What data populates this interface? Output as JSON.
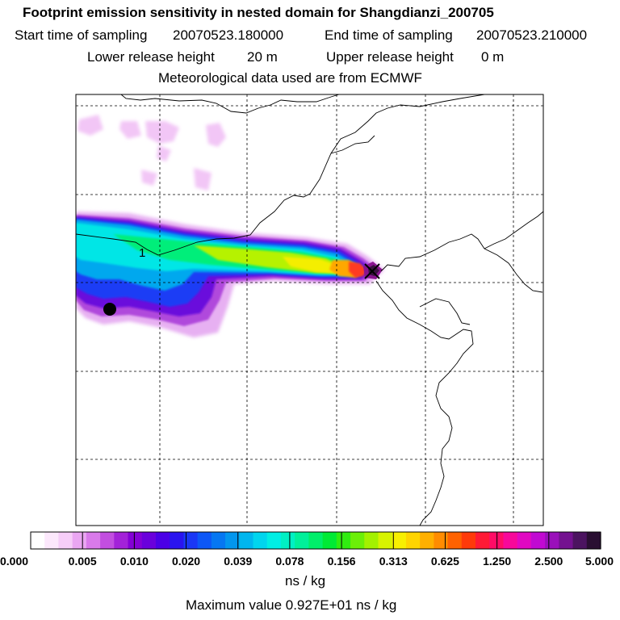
{
  "header": {
    "title": "Footprint emission sensitivity in nested domain for Shangdianzi_200705",
    "start_label": "Start time of sampling",
    "start_value": "20070523.180000",
    "end_label": "End time of sampling",
    "end_value": "20070523.210000",
    "lower_label": "Lower release height",
    "lower_value": "20 m",
    "upper_label": "Upper release height",
    "upper_value": "0 m",
    "met": "Meteorological data used are from ECMWF"
  },
  "chart_data": {
    "type": "heatmap",
    "title": "Footprint emission sensitivity in nested domain for Shangdianzi_200705",
    "units": "ns / kg",
    "max_text": "Maximum value  0.927E+01 ns / kg",
    "max_value": 9.27,
    "contour_label": "1",
    "grid": true,
    "colorbar": {
      "ticks": [
        "0.000",
        "0.005",
        "0.010",
        "0.020",
        "0.039",
        "0.078",
        "0.156",
        "0.313",
        "0.625",
        "1.250",
        "2.500",
        "5.000"
      ],
      "colors": [
        "#ffffff",
        "#fce8fc",
        "#f6cdf8",
        "#eaa6f2",
        "#d97aea",
        "#c24ee0",
        "#a322d8",
        "#8400d6",
        "#6a00dc",
        "#4b00e6",
        "#2a14ef",
        "#1a37f5",
        "#0d57f6",
        "#0677f2",
        "#0396ee",
        "#00b6ee",
        "#00d5ee",
        "#00eee4",
        "#00f0c4",
        "#00f09a",
        "#00ee6a",
        "#00ea35",
        "#30ec10",
        "#6cef08",
        "#a3f100",
        "#d7f300",
        "#f8ef00",
        "#ffd400",
        "#ffb000",
        "#ff8c00",
        "#ff6200",
        "#ff3a0a",
        "#ff1a35",
        "#ff0c66",
        "#f7089a",
        "#e008c2",
        "#c10ad2",
        "#9a10ba",
        "#741290",
        "#4c1460",
        "#2a0f32"
      ]
    },
    "markers": [
      {
        "name": "release-point",
        "shape": "circle",
        "color": "#000000"
      },
      {
        "name": "station-location",
        "shape": "cross",
        "color": "#000000"
      }
    ]
  }
}
